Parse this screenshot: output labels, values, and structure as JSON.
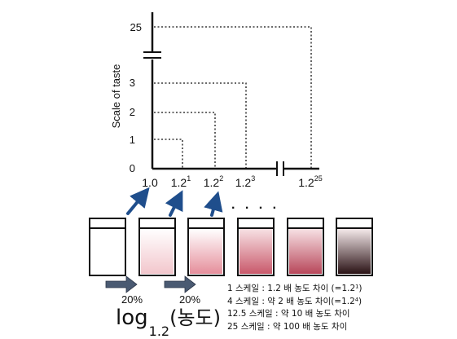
{
  "y_axis": {
    "label": "Scale of taste",
    "ticks": [
      "0",
      "1",
      "2",
      "3",
      "25"
    ]
  },
  "x_axis": {
    "ticks": [
      {
        "base": "1.0",
        "exp": ""
      },
      {
        "base": "1.2",
        "exp": "1"
      },
      {
        "base": "1.2",
        "exp": "2"
      },
      {
        "base": "1.2",
        "exp": "3"
      },
      {
        "base": "1.2",
        "exp": "25"
      }
    ],
    "ellipsis": ". . . ."
  },
  "beakers": [
    {
      "level": 0.0,
      "color": "#ffffff"
    },
    {
      "level": 0.2,
      "color": "#f2c6cc"
    },
    {
      "level": 0.4,
      "color": "#eba8b1"
    },
    {
      "level": 0.6,
      "color": "#d97987"
    },
    {
      "level": 0.8,
      "color": "#c85b6c"
    },
    {
      "level": 1.0,
      "color": "#3a1a1e"
    }
  ],
  "dilution_steps": [
    {
      "label": "20%"
    },
    {
      "label": "20%"
    }
  ],
  "formula": {
    "log": "log",
    "base": "1.2",
    "argument": "(농도)"
  },
  "legend": [
    {
      "text": "1 스케일 : 1.2 배 농도 차이 (=1.2¹)"
    },
    {
      "text": "4 스케일 : 약 2 배 농도 차이(=1.2⁴)"
    },
    {
      "text": "12.5 스케일 : 약 10 배 농도 차이"
    },
    {
      "text": "25 스케일 : 약 100 배 농도 차이"
    }
  ],
  "colors": {
    "axis": "#111111",
    "arrow_blue": "#1f4e8c",
    "arrow_gray": "#4a5a72"
  }
}
